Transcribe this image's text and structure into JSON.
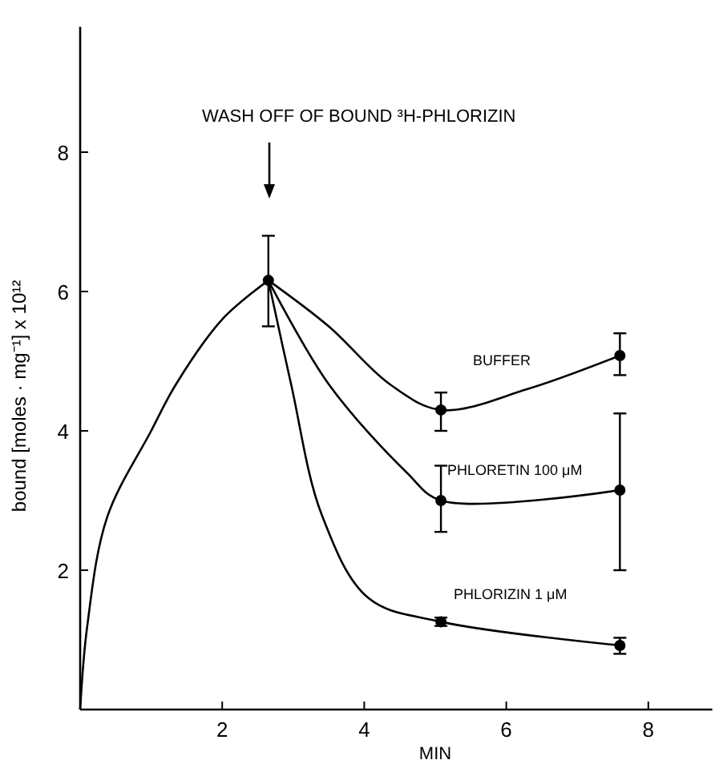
{
  "chart_data": {
    "type": "line",
    "xlabel": "MIN",
    "ylabel": "bound [moles · mg⁻¹] x 10¹²",
    "xlim": [
      0,
      8.9
    ],
    "ylim": [
      0,
      9.8
    ],
    "xticks": [
      2,
      4,
      6,
      8
    ],
    "yticks": [
      2,
      4,
      6,
      8
    ],
    "grid": false,
    "line_style": "solid",
    "annotations": [
      "WASH OFF OF BOUND ³H-PHLORIZIN"
    ],
    "series": [
      {
        "color": "#000000",
        "marker": "none",
        "x": [
          0,
          0.1,
          0.38,
          1,
          1.35,
          2,
          2.65
        ],
        "values": [
          0,
          1.2,
          2.76,
          4.0,
          4.67,
          5.6,
          6.16
        ]
      },
      {
        "name": "BUFFER",
        "color": "#000000",
        "marker": "none",
        "x": [
          2.65,
          3.5,
          4.36,
          5.08,
          6.3,
          7.6
        ],
        "values": [
          6.16,
          5.5,
          4.67,
          4.3,
          4.6,
          5.08
        ]
      },
      {
        "name": "PHLORETIN 100 μM",
        "color": "#000000",
        "marker": "none",
        "x": [
          2.65,
          3.5,
          4.6,
          5.08,
          7.6
        ],
        "values": [
          6.16,
          4.67,
          3.4,
          3.0,
          3.15
        ]
      },
      {
        "name": "PHLORIZIN 1 μM",
        "color": "#000000",
        "marker": "none",
        "x": [
          2.65,
          2.97,
          3.4,
          4.06,
          5.08,
          7.6
        ],
        "values": [
          6.16,
          4.67,
          2.8,
          1.6,
          1.26,
          0.92
        ]
      },
      {
        "type": "scatter",
        "color": "#000000",
        "marker": "circle",
        "x": [
          2.65,
          5.08,
          7.6,
          5.08,
          7.6,
          5.08,
          7.6
        ],
        "values": [
          6.16,
          4.3,
          5.08,
          3.0,
          3.15,
          1.26,
          0.92
        ],
        "errors": [
          [
            5.5,
            6.8
          ],
          [
            4.0,
            4.55
          ],
          [
            4.8,
            5.4
          ],
          [
            2.55,
            3.5
          ],
          [
            2.0,
            4.25
          ],
          [
            1.2,
            1.32
          ],
          [
            0.8,
            1.03
          ]
        ]
      }
    ]
  }
}
